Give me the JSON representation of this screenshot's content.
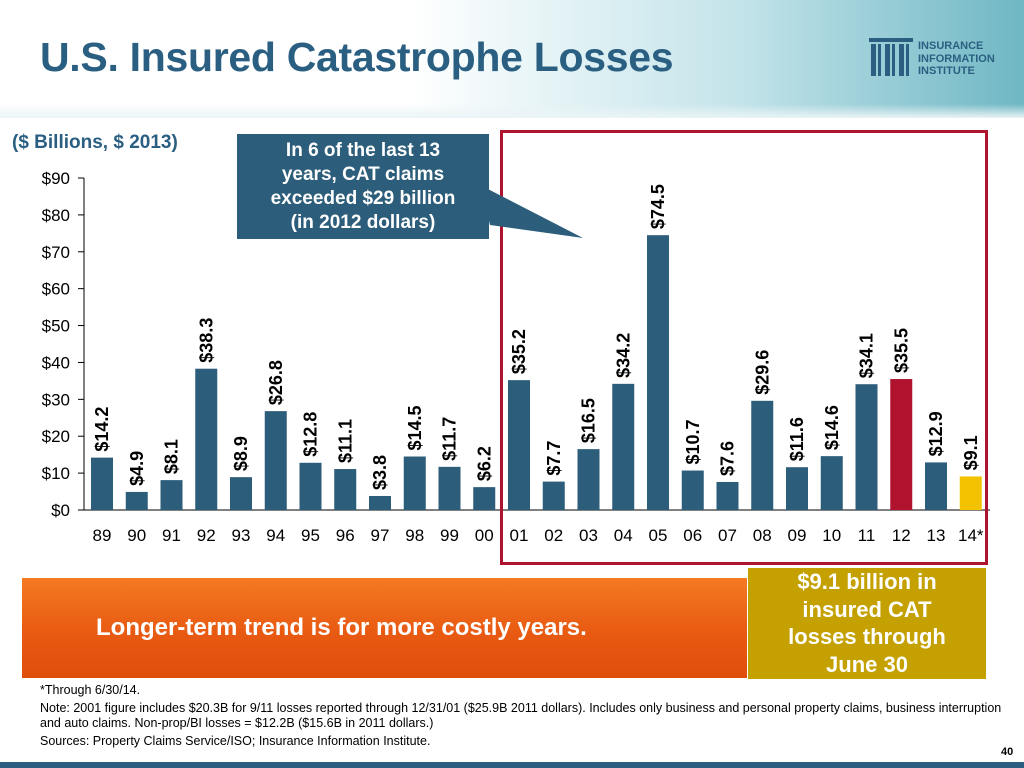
{
  "title": "U.S. Insured Catastrophe Losses",
  "logo": {
    "line1": "INSURANCE",
    "line2": "INFORMATION",
    "line3": "INSTITUTE"
  },
  "units_label": "($ Billions, $ 2013)",
  "callout": {
    "line1": "In 6 of the last 13",
    "line2": "years, CAT claims",
    "line3": "exceeded $29 billion",
    "line4": "(in 2012 dollars)"
  },
  "trend_text": "Longer-term trend is for more costly years.",
  "gold_box": {
    "line1": "$9.1 billion in",
    "line2": "insured CAT",
    "line3": "losses through",
    "line4": "June 30"
  },
  "notes": {
    "footnote": "*Through 6/30/14.",
    "note": "Note: 2001 figure includes $20.3B for 9/11 losses reported through 12/31/01 ($25.9B 2011 dollars). Includes only business and personal property claims, business interruption and auto claims. Non-prop/BI losses = $12.2B ($15.6B in 2011 dollars.)",
    "sources": "Sources: Property Claims Service/ISO;  Insurance Information Institute."
  },
  "page_number": "40",
  "colors": {
    "default_bar": "#2c5d7a",
    "highlight_bar": "#b0132e",
    "partial_bar": "#f2c200",
    "accent": "#2a5f82"
  },
  "chart_data": {
    "type": "bar",
    "title": "U.S. Insured Catastrophe Losses",
    "ylabel": "($ Billions, $ 2013)",
    "ylim": [
      0,
      90
    ],
    "yticks": [
      0,
      10,
      20,
      30,
      40,
      50,
      60,
      70,
      80,
      90
    ],
    "ytick_labels": [
      "$0",
      "$10",
      "$20",
      "$30",
      "$40",
      "$50",
      "$60",
      "$70",
      "$80",
      "$90"
    ],
    "categories": [
      "89",
      "90",
      "91",
      "92",
      "93",
      "94",
      "95",
      "96",
      "97",
      "98",
      "99",
      "00",
      "01",
      "02",
      "03",
      "04",
      "05",
      "06",
      "07",
      "08",
      "09",
      "10",
      "11",
      "12",
      "13",
      "14*"
    ],
    "values": [
      14.2,
      4.9,
      8.1,
      38.3,
      8.9,
      26.8,
      12.8,
      11.1,
      3.8,
      14.5,
      11.7,
      6.2,
      35.2,
      7.7,
      16.5,
      34.2,
      74.5,
      10.7,
      7.6,
      29.6,
      11.6,
      14.6,
      34.1,
      35.5,
      12.9,
      9.1
    ],
    "labels": [
      "$14.2",
      "$4.9",
      "$8.1",
      "$38.3",
      "$8.9",
      "$26.8",
      "$12.8",
      "$11.1",
      "$3.8",
      "$14.5",
      "$11.7",
      "$6.2",
      "$35.2",
      "$7.7",
      "$16.5",
      "$34.2",
      "$74.5",
      "$10.7",
      "$7.6",
      "$29.6",
      "$11.6",
      "$14.6",
      "$34.1",
      "$35.5",
      "$12.9",
      "$9.1"
    ],
    "bar_colors": [
      "default",
      "default",
      "default",
      "default",
      "default",
      "default",
      "default",
      "default",
      "default",
      "default",
      "default",
      "default",
      "default",
      "default",
      "default",
      "default",
      "default",
      "default",
      "default",
      "default",
      "default",
      "default",
      "default",
      "highlight",
      "default",
      "partial"
    ],
    "grid": false,
    "legend": "none"
  }
}
